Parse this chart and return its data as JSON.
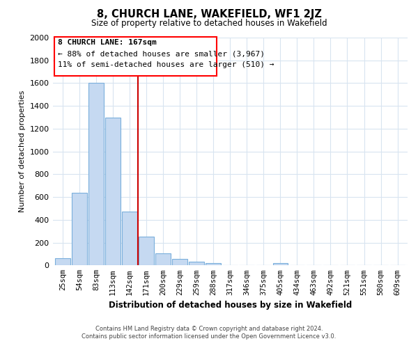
{
  "title": "8, CHURCH LANE, WAKEFIELD, WF1 2JZ",
  "subtitle": "Size of property relative to detached houses in Wakefield",
  "xlabel": "Distribution of detached houses by size in Wakefield",
  "ylabel": "Number of detached properties",
  "bar_labels": [
    "25sqm",
    "54sqm",
    "83sqm",
    "113sqm",
    "142sqm",
    "171sqm",
    "200sqm",
    "229sqm",
    "259sqm",
    "288sqm",
    "317sqm",
    "346sqm",
    "375sqm",
    "405sqm",
    "434sqm",
    "463sqm",
    "492sqm",
    "521sqm",
    "551sqm",
    "580sqm",
    "609sqm"
  ],
  "bar_values": [
    65,
    635,
    1600,
    1300,
    475,
    250,
    105,
    55,
    30,
    20,
    0,
    0,
    0,
    20,
    0,
    0,
    0,
    0,
    0,
    0,
    0
  ],
  "bar_color": "#c5d9f1",
  "bar_edge_color": "#7aafdc",
  "vline_color": "#cc0000",
  "ylim": [
    0,
    2000
  ],
  "annotation_title": "8 CHURCH LANE: 167sqm",
  "annotation_line1": "← 88% of detached houses are smaller (3,967)",
  "annotation_line2": "11% of semi-detached houses are larger (510) →",
  "footer_line1": "Contains HM Land Registry data © Crown copyright and database right 2024.",
  "footer_line2": "Contains public sector information licensed under the Open Government Licence v3.0.",
  "background_color": "#ffffff",
  "grid_color": "#d8e4f0"
}
